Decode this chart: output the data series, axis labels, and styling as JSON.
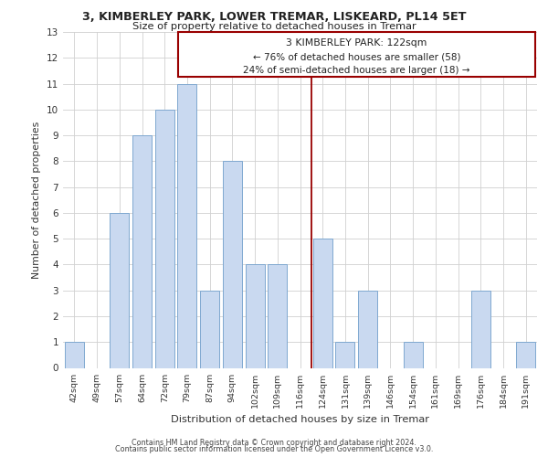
{
  "title1": "3, KIMBERLEY PARK, LOWER TREMAR, LISKEARD, PL14 5ET",
  "title2": "Size of property relative to detached houses in Tremar",
  "xlabel": "Distribution of detached houses by size in Tremar",
  "ylabel": "Number of detached properties",
  "bar_labels": [
    "42sqm",
    "49sqm",
    "57sqm",
    "64sqm",
    "72sqm",
    "79sqm",
    "87sqm",
    "94sqm",
    "102sqm",
    "109sqm",
    "116sqm",
    "124sqm",
    "131sqm",
    "139sqm",
    "146sqm",
    "154sqm",
    "161sqm",
    "169sqm",
    "176sqm",
    "184sqm",
    "191sqm"
  ],
  "bar_values": [
    1,
    0,
    6,
    9,
    10,
    11,
    3,
    8,
    4,
    4,
    0,
    5,
    1,
    3,
    0,
    1,
    0,
    0,
    3,
    0,
    1
  ],
  "bar_color": "#c9d9f0",
  "bar_edge_color": "#7fa8d0",
  "annotation_title": "3 KIMBERLEY PARK: 122sqm",
  "annotation_line1": "← 76% of detached houses are smaller (58)",
  "annotation_line2": "24% of semi-detached houses are larger (18) →",
  "annotation_box_edge": "#990000",
  "reference_line_color": "#990000",
  "ylim": [
    0,
    13
  ],
  "yticks": [
    0,
    1,
    2,
    3,
    4,
    5,
    6,
    7,
    8,
    9,
    10,
    11,
    12,
    13
  ],
  "footer1": "Contains HM Land Registry data © Crown copyright and database right 2024.",
  "footer2": "Contains public sector information licensed under the Open Government Licence v3.0.",
  "background_color": "#ffffff",
  "grid_color": "#d0d0d0"
}
